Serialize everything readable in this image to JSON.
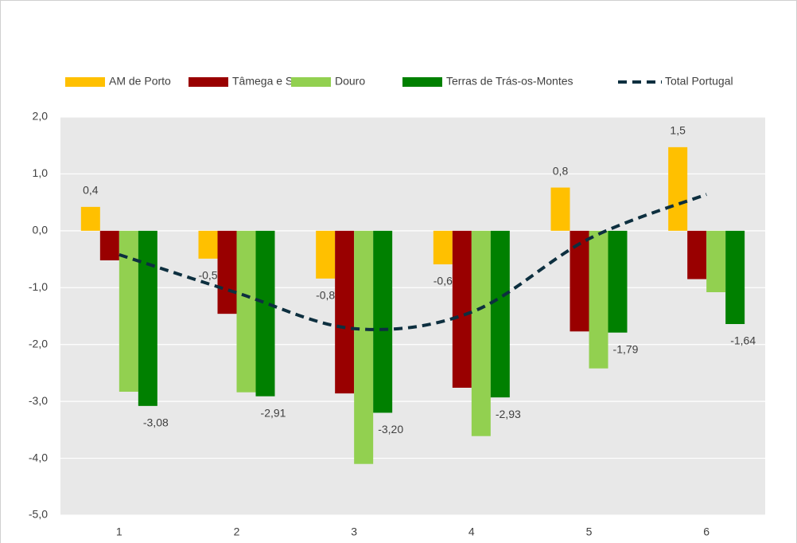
{
  "chart_data": {
    "type": "bar",
    "categories": [
      "1",
      "2",
      "3",
      "4",
      "5",
      "6"
    ],
    "series": [
      {
        "name": "AM de Porto",
        "color": "#ffc000",
        "values": [
          0.42,
          -0.49,
          -0.84,
          -0.59,
          0.76,
          1.47
        ],
        "value_labels": [
          "0,4",
          "-0,5",
          "-0,8",
          "-0,6",
          "0,8",
          "1,5"
        ]
      },
      {
        "name": "Tâmega e Sousa",
        "color": "#990000",
        "values": [
          -0.52,
          -1.46,
          -2.86,
          -2.76,
          -1.77,
          -0.85
        ]
      },
      {
        "name": "Douro",
        "color": "#92d050",
        "values": [
          -2.83,
          -2.84,
          -4.1,
          -3.61,
          -2.42,
          -1.08
        ]
      },
      {
        "name": "Terras de Trás-os-Montes",
        "color": "#008000",
        "values": [
          -3.08,
          -2.91,
          -3.2,
          -2.93,
          -1.79,
          -1.64
        ],
        "value_labels": [
          "-3,08",
          "-2,91",
          "-3,20",
          "-2,93",
          "-1,79",
          "-1,64"
        ]
      },
      {
        "name": "Total Portugal",
        "type": "line",
        "color": "#0d2f3f",
        "dashed": true,
        "values": [
          -0.42,
          -1.09,
          -1.72,
          -1.43,
          -0.14,
          0.64
        ]
      }
    ],
    "ylim": [
      -5,
      2
    ],
    "yticks": [
      {
        "value": -5,
        "label": "-5,0"
      },
      {
        "value": -4,
        "label": "-4,0"
      },
      {
        "value": -3,
        "label": "-3,0"
      },
      {
        "value": -2,
        "label": "-2,0"
      },
      {
        "value": -1,
        "label": "-1,0"
      },
      {
        "value": 0,
        "label": "0,0"
      },
      {
        "value": 1,
        "label": "1,0"
      },
      {
        "value": 2,
        "label": "2,0"
      }
    ],
    "grid": true,
    "legend": "top"
  }
}
